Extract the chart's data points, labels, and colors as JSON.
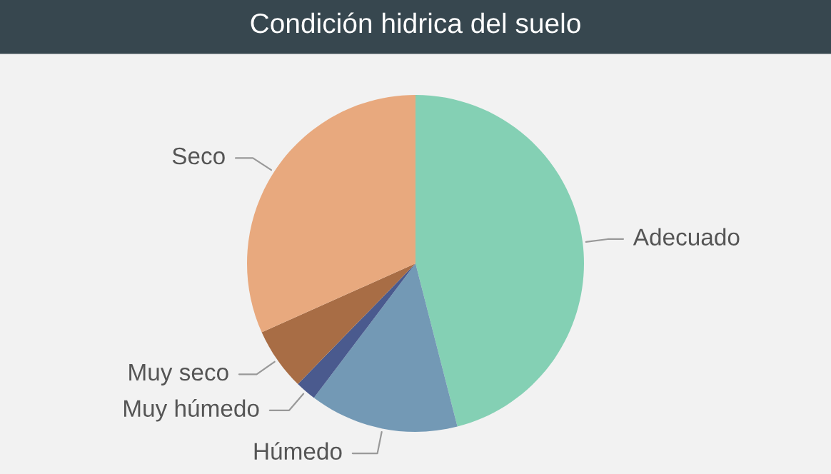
{
  "chart_data": {
    "type": "pie",
    "title": "Condición hidrica del suelo",
    "categories": [
      "Adecuado",
      "Húmedo",
      "Muy húmedo",
      "Muy seco",
      "Seco"
    ],
    "values": [
      46,
      14.3,
      2,
      6,
      31.7
    ],
    "colors": [
      "#84d0b4",
      "#7399b5",
      "#4a5a8e",
      "#a86d45",
      "#e8a97e"
    ],
    "legend": false
  }
}
